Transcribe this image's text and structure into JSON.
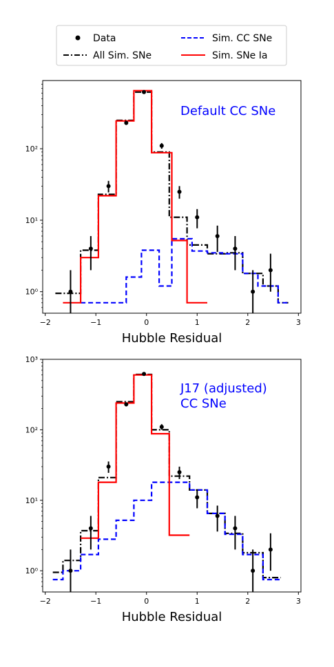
{
  "legend": {
    "entries": [
      {
        "label": "Data",
        "style": "points",
        "color": "#000000"
      },
      {
        "label": "All Sim. SNe",
        "style": "dashdot",
        "color": "#000000"
      },
      {
        "label": "Sim. CC SNe",
        "style": "dashed",
        "color": "#0000ff"
      },
      {
        "label": "Sim. SNe Ia",
        "style": "solid",
        "color": "#ff0000"
      }
    ]
  },
  "chart_data": [
    {
      "type": "histogram",
      "xlabel": "Hubble Residual",
      "annotation": "Default CC SNe",
      "annotation_color": "#0000ff",
      "xlim": [
        -2.05,
        3.05
      ],
      "ylim": [
        0.5,
        900
      ],
      "yscale": "log",
      "xticks": [
        -2,
        -1,
        0,
        1,
        2,
        3
      ],
      "xtick_labels": [
        "−2",
        "−1",
        "0",
        "1",
        "2",
        "3"
      ],
      "yticks": [
        1,
        10,
        100
      ],
      "ytick_labels": [
        "10⁰",
        "10¹",
        "10²"
      ],
      "series": [
        {
          "name": "All Sim. SNe",
          "color": "#000000",
          "dash": "dashdot",
          "edges": [
            -1.8,
            -1.3,
            -0.95,
            -0.6,
            -0.25,
            0.1,
            0.45,
            0.8,
            1.2,
            1.55,
            1.9,
            2.3,
            2.6,
            2.8
          ],
          "values": [
            0.95,
            3.8,
            23,
            250,
            620,
            90,
            11,
            4.5,
            3.4,
            3.5,
            1.8,
            1.2,
            0.7
          ]
        },
        {
          "name": "Sim. CC SNe",
          "color": "#0000ff",
          "dash": "dashed",
          "edges": [
            -1.3,
            -0.7,
            -0.4,
            -0.1,
            0.25,
            0.5,
            0.9,
            1.2,
            1.5,
            1.9,
            2.2,
            2.6,
            2.8
          ],
          "values": [
            0.7,
            0.7,
            1.6,
            3.8,
            1.2,
            5.5,
            3.7,
            3.5,
            3.4,
            1.8,
            1.2,
            0.7
          ]
        },
        {
          "name": "Sim. SNe Ia",
          "color": "#ff0000",
          "dash": "solid",
          "edges": [
            -1.65,
            -1.3,
            -0.95,
            -0.6,
            -0.25,
            0.1,
            0.5,
            0.8,
            1.2
          ],
          "values": [
            0.7,
            3.0,
            22,
            245,
            650,
            88,
            5.2,
            0.7
          ]
        }
      ],
      "points": {
        "x": [
          -1.5,
          -1.1,
          -0.75,
          -0.4,
          -0.05,
          0.3,
          0.65,
          1.0,
          1.4,
          1.75,
          2.1,
          2.45
        ],
        "y": [
          1.0,
          4.0,
          30,
          230,
          620,
          110,
          25,
          11,
          6,
          4,
          1.0,
          2.0
        ],
        "yerr_low": [
          0.5,
          2.0,
          5.5,
          15,
          25,
          10,
          5,
          3.3,
          2.4,
          2.0,
          0.5,
          1.0
        ],
        "yerr_high": [
          1.0,
          2.0,
          5.5,
          15,
          25,
          10,
          5,
          3.3,
          2.4,
          2.0,
          1.0,
          1.4
        ]
      }
    },
    {
      "type": "histogram",
      "xlabel": "Hubble Residual",
      "annotation": "J17 (adjusted)\nCC SNe",
      "annotation_color": "#0000ff",
      "xlim": [
        -2.05,
        3.05
      ],
      "ylim": [
        0.5,
        1000
      ],
      "yscale": "log",
      "xticks": [
        -2,
        -1,
        0,
        1,
        2,
        3
      ],
      "xtick_labels": [
        "−2",
        "−1",
        "0",
        "1",
        "2",
        "3"
      ],
      "yticks": [
        1,
        10,
        100,
        1000
      ],
      "ytick_labels": [
        "10⁰",
        "10¹",
        "10²",
        "10³"
      ],
      "series": [
        {
          "name": "All Sim. SNe",
          "color": "#000000",
          "dash": "dashdot",
          "edges": [
            -1.85,
            -1.65,
            -1.3,
            -0.95,
            -0.6,
            -0.25,
            0.1,
            0.45,
            0.85,
            1.2,
            1.55,
            1.9,
            2.3,
            2.65
          ],
          "values": [
            0.95,
            1.4,
            3.7,
            21,
            250,
            610,
            100,
            22,
            14,
            6.5,
            3.4,
            1.8,
            0.8
          ]
        },
        {
          "name": "Sim. CC SNe",
          "color": "#0000ff",
          "dash": "dashed",
          "edges": [
            -1.85,
            -1.65,
            -1.3,
            -0.95,
            -0.6,
            -0.25,
            0.1,
            0.45,
            0.85,
            1.2,
            1.55,
            1.9,
            2.3,
            2.65
          ],
          "values": [
            0.75,
            1.0,
            1.7,
            2.8,
            5.2,
            10,
            18,
            18,
            14,
            6.5,
            3.3,
            1.7,
            0.75
          ]
        },
        {
          "name": "Sim. SNe Ia",
          "color": "#ff0000",
          "dash": "solid",
          "edges": [
            -1.3,
            -0.95,
            -0.6,
            -0.25,
            0.1,
            0.45,
            0.85
          ],
          "values": [
            2.9,
            18,
            240,
            600,
            88,
            3.2
          ]
        }
      ],
      "points": {
        "x": [
          -1.5,
          -1.1,
          -0.75,
          -0.4,
          -0.05,
          0.3,
          0.65,
          1.0,
          1.4,
          1.75,
          2.1,
          2.45
        ],
        "y": [
          1.0,
          4.0,
          30,
          230,
          620,
          110,
          25,
          11,
          6,
          4,
          1.0,
          2.0
        ],
        "yerr_low": [
          0.5,
          2.0,
          5.5,
          15,
          25,
          10,
          5,
          3.3,
          2.4,
          2.0,
          0.5,
          1.0
        ],
        "yerr_high": [
          1.0,
          2.0,
          5.5,
          15,
          25,
          10,
          5,
          3.3,
          2.4,
          2.0,
          1.0,
          1.4
        ]
      }
    }
  ]
}
